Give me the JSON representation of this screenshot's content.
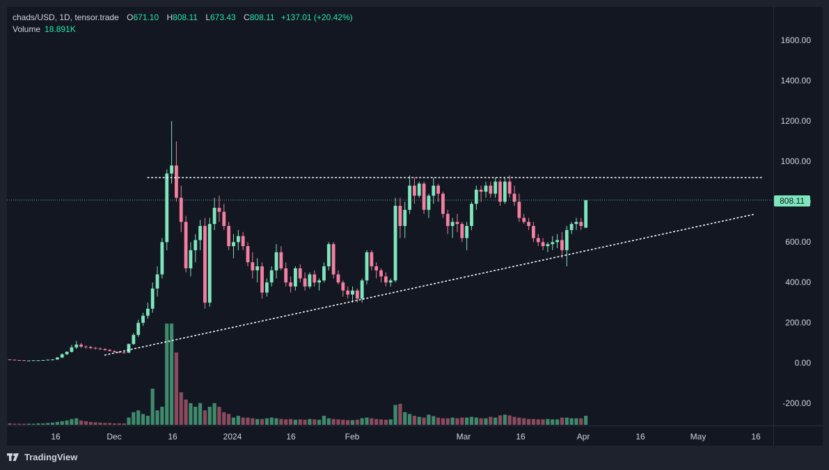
{
  "legend": {
    "symbol": "chads/USD, 1D, tensor.trade",
    "open_key": "O",
    "open": "671.10",
    "high_key": "H",
    "high": "808.11",
    "low_key": "L",
    "low": "673.43",
    "close_key": "C",
    "close": "808.11",
    "change": "+137.01 (+20.42%)",
    "volume_label": "Volume",
    "volume": "18.891K"
  },
  "last_price_label": "808.11",
  "brand": "TradingView",
  "colors": {
    "up": "#26a69a",
    "up_wick": "#7ee6bc",
    "down": "#f47fa0",
    "vol_up": "#3f8a6c",
    "vol_down": "#8c4a5e",
    "bg": "#131722",
    "trendline": "#ffffff",
    "price_line": "#7ee6bc"
  },
  "chart_data": {
    "type": "candlestick",
    "title": "chads/USD, 1D, tensor.trade",
    "yticks": [
      "1600.00",
      "1400.00",
      "1200.00",
      "1000.00",
      "800.00",
      "600.00",
      "400.00",
      "200.00",
      "0.00",
      "-200.00"
    ],
    "ylim": [
      -300,
      1720
    ],
    "xticks": [
      "16",
      "Dec",
      "16",
      "2024",
      "16",
      "Feb",
      "Mar",
      "16",
      "Apr",
      "16",
      "May",
      "16"
    ],
    "last_price": 808.11,
    "horizontal_resistance": 920,
    "ascending_trendline": [
      [
        0,
        40
      ],
      [
        129,
        740
      ]
    ],
    "ohlc": [
      [
        18,
        18,
        15,
        17
      ],
      [
        17,
        17,
        14,
        15
      ],
      [
        15,
        16,
        13,
        14
      ],
      [
        14,
        15,
        12,
        13
      ],
      [
        13,
        14,
        12,
        13
      ],
      [
        13,
        14,
        12,
        14
      ],
      [
        14,
        15,
        13,
        14
      ],
      [
        14,
        16,
        13,
        15
      ],
      [
        15,
        18,
        14,
        17
      ],
      [
        17,
        20,
        15,
        18
      ],
      [
        18,
        30,
        17,
        28
      ],
      [
        28,
        48,
        25,
        44
      ],
      [
        44,
        60,
        40,
        56
      ],
      [
        56,
        90,
        52,
        78
      ],
      [
        78,
        110,
        70,
        92
      ],
      [
        92,
        100,
        75,
        82
      ],
      [
        82,
        88,
        72,
        80
      ],
      [
        80,
        85,
        70,
        75
      ],
      [
        75,
        80,
        68,
        72
      ],
      [
        72,
        78,
        66,
        70
      ],
      [
        70,
        74,
        62,
        65
      ],
      [
        65,
        70,
        58,
        60
      ],
      [
        60,
        64,
        52,
        56
      ],
      [
        56,
        60,
        50,
        53
      ],
      [
        53,
        58,
        48,
        52
      ],
      [
        52,
        98,
        50,
        95
      ],
      [
        95,
        150,
        90,
        140
      ],
      [
        140,
        215,
        130,
        200
      ],
      [
        200,
        250,
        185,
        235
      ],
      [
        235,
        300,
        220,
        270
      ],
      [
        270,
        400,
        250,
        370
      ],
      [
        370,
        480,
        330,
        440
      ],
      [
        440,
        620,
        420,
        600
      ],
      [
        600,
        960,
        560,
        940
      ],
      [
        940,
        1200,
        890,
        980
      ],
      [
        980,
        1100,
        800,
        820
      ],
      [
        820,
        880,
        650,
        700
      ],
      [
        700,
        730,
        450,
        470
      ],
      [
        470,
        600,
        430,
        560
      ],
      [
        560,
        640,
        500,
        610
      ],
      [
        610,
        710,
        560,
        680
      ],
      [
        680,
        720,
        270,
        300
      ],
      [
        300,
        720,
        280,
        690
      ],
      [
        690,
        820,
        660,
        770
      ],
      [
        770,
        830,
        700,
        750
      ],
      [
        750,
        790,
        660,
        680
      ],
      [
        680,
        700,
        560,
        580
      ],
      [
        580,
        640,
        520,
        600
      ],
      [
        600,
        660,
        560,
        630
      ],
      [
        630,
        650,
        560,
        580
      ],
      [
        580,
        600,
        480,
        500
      ],
      [
        500,
        550,
        420,
        460
      ],
      [
        460,
        520,
        400,
        480
      ],
      [
        480,
        500,
        320,
        350
      ],
      [
        350,
        420,
        330,
        400
      ],
      [
        400,
        480,
        380,
        460
      ],
      [
        460,
        590,
        420,
        550
      ],
      [
        550,
        580,
        460,
        470
      ],
      [
        470,
        500,
        380,
        400
      ],
      [
        400,
        430,
        350,
        380
      ],
      [
        380,
        480,
        360,
        470
      ],
      [
        470,
        490,
        400,
        420
      ],
      [
        420,
        450,
        360,
        380
      ],
      [
        380,
        450,
        370,
        440
      ],
      [
        440,
        460,
        380,
        400
      ],
      [
        400,
        420,
        360,
        410
      ],
      [
        410,
        500,
        400,
        480
      ],
      [
        480,
        600,
        460,
        590
      ],
      [
        590,
        600,
        420,
        440
      ],
      [
        440,
        460,
        390,
        400
      ],
      [
        400,
        410,
        330,
        360
      ],
      [
        360,
        380,
        320,
        340
      ],
      [
        340,
        380,
        300,
        360
      ],
      [
        360,
        370,
        300,
        320
      ],
      [
        320,
        420,
        300,
        410
      ],
      [
        410,
        560,
        390,
        550
      ],
      [
        550,
        560,
        460,
        480
      ],
      [
        480,
        500,
        420,
        460
      ],
      [
        460,
        470,
        400,
        430
      ],
      [
        430,
        450,
        380,
        400
      ],
      [
        400,
        420,
        380,
        410
      ],
      [
        410,
        820,
        400,
        780
      ],
      [
        780,
        820,
        620,
        680
      ],
      [
        680,
        800,
        620,
        760
      ],
      [
        760,
        930,
        740,
        880
      ],
      [
        880,
        920,
        790,
        830
      ],
      [
        830,
        900,
        820,
        890
      ],
      [
        890,
        900,
        740,
        760
      ],
      [
        760,
        840,
        720,
        830
      ],
      [
        830,
        920,
        790,
        880
      ],
      [
        880,
        890,
        800,
        840
      ],
      [
        840,
        850,
        720,
        740
      ],
      [
        740,
        760,
        640,
        680
      ],
      [
        680,
        720,
        620,
        700
      ],
      [
        700,
        740,
        650,
        690
      ],
      [
        690,
        700,
        600,
        620
      ],
      [
        620,
        700,
        560,
        680
      ],
      [
        680,
        800,
        660,
        790
      ],
      [
        790,
        880,
        760,
        860
      ],
      [
        860,
        880,
        800,
        850
      ],
      [
        850,
        900,
        820,
        880
      ],
      [
        880,
        900,
        820,
        840
      ],
      [
        840,
        920,
        820,
        900
      ],
      [
        900,
        910,
        780,
        800
      ],
      [
        800,
        920,
        790,
        900
      ],
      [
        900,
        930,
        820,
        840
      ],
      [
        840,
        880,
        780,
        800
      ],
      [
        800,
        840,
        700,
        720
      ],
      [
        720,
        740,
        690,
        700
      ],
      [
        700,
        720,
        660,
        680
      ],
      [
        680,
        700,
        600,
        620
      ],
      [
        620,
        640,
        580,
        600
      ],
      [
        600,
        620,
        560,
        580
      ],
      [
        580,
        600,
        550,
        590
      ],
      [
        590,
        630,
        560,
        600
      ],
      [
        600,
        640,
        570,
        610
      ],
      [
        610,
        650,
        520,
        560
      ],
      [
        560,
        680,
        480,
        660
      ],
      [
        660,
        700,
        640,
        690
      ],
      [
        690,
        720,
        660,
        700
      ],
      [
        700,
        720,
        660,
        680
      ],
      [
        671.1,
        808.11,
        673.43,
        808.11
      ]
    ],
    "volume": [
      0.4,
      0.3,
      0.3,
      0.3,
      0.3,
      0.3,
      0.4,
      0.4,
      0.5,
      0.6,
      0.8,
      1.0,
      1.2,
      1.6,
      1.8,
      1.2,
      1.0,
      0.8,
      0.7,
      0.6,
      0.5,
      0.5,
      0.4,
      0.4,
      0.4,
      2.0,
      3.5,
      4.0,
      3.0,
      2.5,
      10.0,
      4.0,
      5.0,
      28.0,
      28.0,
      20.0,
      9.0,
      7.0,
      6.0,
      5.0,
      6.0,
      4.0,
      5.0,
      6.0,
      5.0,
      3.5,
      3.0,
      2.0,
      2.5,
      2.0,
      2.0,
      1.8,
      1.6,
      1.6,
      1.8,
      2.0,
      1.8,
      1.6,
      1.5,
      1.6,
      1.4,
      1.5,
      1.4,
      1.6,
      1.5,
      1.4,
      2.5,
      1.8,
      1.6,
      1.5,
      1.4,
      1.3,
      1.3,
      1.4,
      1.8,
      2.0,
      1.8,
      1.6,
      1.5,
      1.4,
      1.5,
      5.5,
      5.8,
      3.5,
      3.0,
      2.5,
      2.2,
      2.0,
      2.8,
      2.4,
      2.0,
      1.8,
      1.8,
      2.0,
      1.8,
      2.0,
      2.0,
      2.2,
      2.0,
      1.8,
      1.8,
      2.2,
      2.0,
      2.6,
      2.8,
      2.6,
      2.2,
      2.0,
      1.8,
      1.6,
      1.6,
      1.5,
      1.5,
      1.6,
      1.5,
      1.5,
      2.0,
      2.0,
      1.8,
      1.8,
      1.8,
      2.5
    ]
  }
}
